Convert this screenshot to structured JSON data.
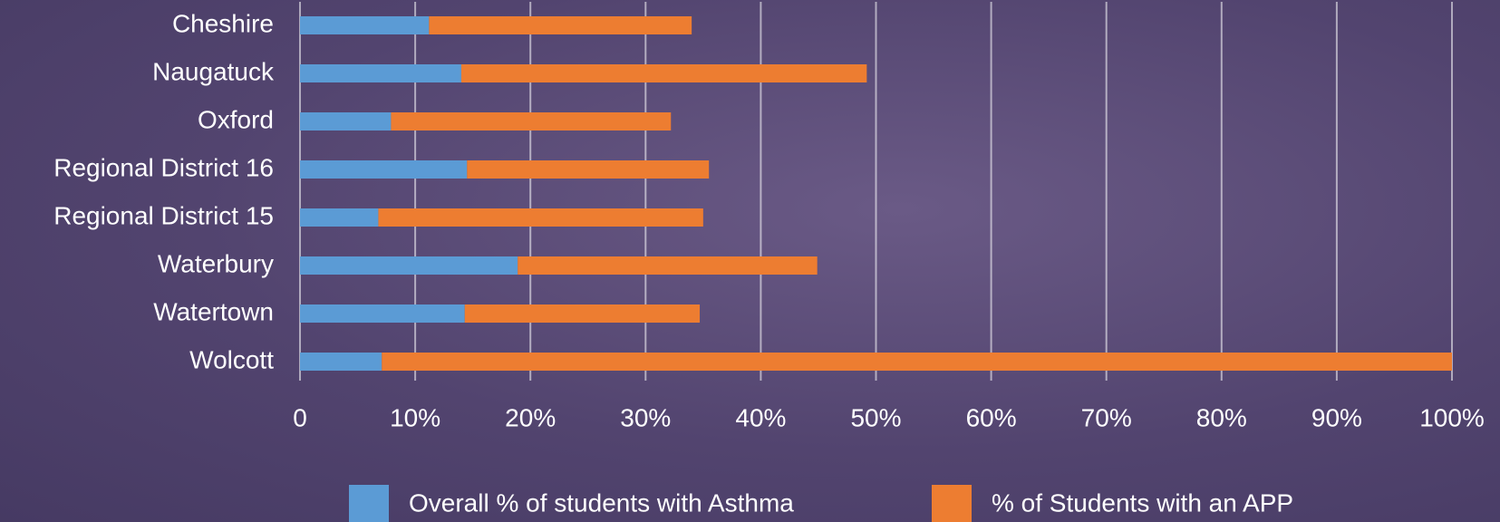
{
  "chart_data": {
    "type": "stacked-bar-horizontal",
    "categories": [
      "Cheshire",
      "Naugatuck",
      "Oxford",
      "Regional District 16",
      "Regional District 15",
      "Waterbury",
      "Watertown",
      "Wolcott"
    ],
    "series": [
      {
        "name": "Overall % of students with Asthma",
        "color": "#5b9bd5",
        "values": [
          11.2,
          14.0,
          7.9,
          14.5,
          6.8,
          18.9,
          14.3,
          7.1
        ]
      },
      {
        "name": "% of Students with an APP",
        "color": "#ed7d31",
        "values": [
          22.8,
          35.2,
          24.3,
          21.0,
          28.2,
          26.0,
          20.4,
          92.9
        ]
      }
    ],
    "xlim": [
      0,
      100
    ],
    "xticks": [
      0,
      {
        "value": 10,
        "label": "10%"
      },
      {
        "value": 20,
        "label": "20%"
      },
      {
        "value": 30,
        "label": "30%"
      },
      {
        "value": 40,
        "label": "40%"
      },
      {
        "value": 50,
        "label": "50%"
      },
      {
        "value": 60,
        "label": "60%"
      },
      {
        "value": 70,
        "label": "70%"
      },
      {
        "value": 80,
        "label": "80%"
      },
      {
        "value": 90,
        "label": "90%"
      },
      {
        "value": 100,
        "label": "100%"
      }
    ],
    "grid": true
  }
}
